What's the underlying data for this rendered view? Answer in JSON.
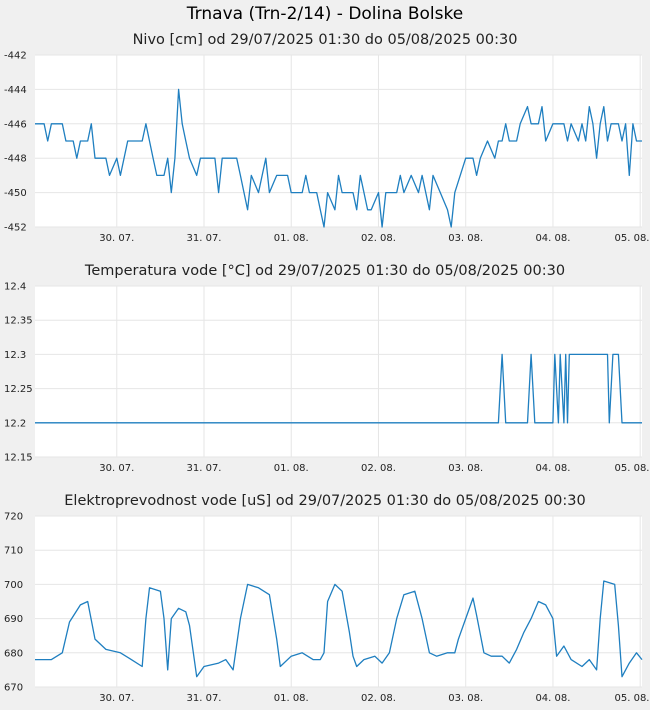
{
  "title": "Trnava (Trn-2/14) - Dolina Bolske",
  "series_color": "#1f7fc0",
  "chart_data": [
    {
      "type": "line",
      "title": "Nivo [cm] od 29/07/2025 01:30 do 05/08/2025 00:30",
      "ylim": [
        -452,
        -442
      ],
      "yticks": [
        "-442",
        "-444",
        "-446",
        "-448",
        "-450",
        "-452"
      ],
      "xticks": [
        "30. 07.",
        "31. 07.",
        "01. 08.",
        "02. 08.",
        "03. 08.",
        "04. 08.",
        "05. 08."
      ],
      "x_start": "2025-07-29 01:30",
      "x_end": "2025-08-05 00:30",
      "series": [
        {
          "points": [
            [
              "2025-07-29 01:30",
              -446
            ],
            [
              "2025-07-29 04:00",
              -446
            ],
            [
              "2025-07-29 05:00",
              -447
            ],
            [
              "2025-07-29 06:00",
              -446
            ],
            [
              "2025-07-29 09:00",
              -446
            ],
            [
              "2025-07-29 10:00",
              -447
            ],
            [
              "2025-07-29 12:00",
              -447
            ],
            [
              "2025-07-29 13:00",
              -448
            ],
            [
              "2025-07-29 14:00",
              -447
            ],
            [
              "2025-07-29 16:00",
              -447
            ],
            [
              "2025-07-29 17:00",
              -446
            ],
            [
              "2025-07-29 18:00",
              -448
            ],
            [
              "2025-07-29 21:00",
              -448
            ],
            [
              "2025-07-29 22:00",
              -449
            ],
            [
              "2025-07-30 00:00",
              -448
            ],
            [
              "2025-07-30 01:00",
              -449
            ],
            [
              "2025-07-30 03:00",
              -447
            ],
            [
              "2025-07-30 07:00",
              -447
            ],
            [
              "2025-07-30 08:00",
              -446
            ],
            [
              "2025-07-30 09:00",
              -447
            ],
            [
              "2025-07-30 10:00",
              -448
            ],
            [
              "2025-07-30 11:00",
              -449
            ],
            [
              "2025-07-30 13:00",
              -449
            ],
            [
              "2025-07-30 14:00",
              -448
            ],
            [
              "2025-07-30 15:00",
              -450
            ],
            [
              "2025-07-30 16:00",
              -448
            ],
            [
              "2025-07-30 17:00",
              -444
            ],
            [
              "2025-07-30 18:00",
              -446
            ],
            [
              "2025-07-30 19:00",
              -447
            ],
            [
              "2025-07-30 20:00",
              -448
            ],
            [
              "2025-07-30 22:00",
              -449
            ],
            [
              "2025-07-30 23:00",
              -448
            ],
            [
              "2025-07-31 03:00",
              -448
            ],
            [
              "2025-07-31 04:00",
              -450
            ],
            [
              "2025-07-31 05:00",
              -448
            ],
            [
              "2025-07-31 09:00",
              -448
            ],
            [
              "2025-07-31 10:00",
              -449
            ],
            [
              "2025-07-31 11:00",
              -450
            ],
            [
              "2025-07-31 12:00",
              -451
            ],
            [
              "2025-07-31 13:00",
              -449
            ],
            [
              "2025-07-31 15:00",
              -450
            ],
            [
              "2025-07-31 17:00",
              -448
            ],
            [
              "2025-07-31 18:00",
              -450
            ],
            [
              "2025-07-31 20:00",
              -449
            ],
            [
              "2025-07-31 23:00",
              -449
            ],
            [
              "2025-08-01 00:00",
              -450
            ],
            [
              "2025-08-01 03:00",
              -450
            ],
            [
              "2025-08-01 04:00",
              -449
            ],
            [
              "2025-08-01 05:00",
              -450
            ],
            [
              "2025-08-01 07:00",
              -450
            ],
            [
              "2025-08-01 08:00",
              -451
            ],
            [
              "2025-08-01 09:00",
              -452
            ],
            [
              "2025-08-01 10:00",
              -450
            ],
            [
              "2025-08-01 12:00",
              -451
            ],
            [
              "2025-08-01 13:00",
              -449
            ],
            [
              "2025-08-01 14:00",
              -450
            ],
            [
              "2025-08-01 17:00",
              -450
            ],
            [
              "2025-08-01 18:00",
              -451
            ],
            [
              "2025-08-01 19:00",
              -449
            ],
            [
              "2025-08-01 21:00",
              -451
            ],
            [
              "2025-08-01 22:00",
              -451
            ],
            [
              "2025-08-02 00:00",
              -450
            ],
            [
              "2025-08-02 01:00",
              -452
            ],
            [
              "2025-08-02 02:00",
              -450
            ],
            [
              "2025-08-02 05:00",
              -450
            ],
            [
              "2025-08-02 06:00",
              -449
            ],
            [
              "2025-08-02 07:00",
              -450
            ],
            [
              "2025-08-02 09:00",
              -449
            ],
            [
              "2025-08-02 11:00",
              -450
            ],
            [
              "2025-08-02 12:00",
              -449
            ],
            [
              "2025-08-02 14:00",
              -451
            ],
            [
              "2025-08-02 15:00",
              -449
            ],
            [
              "2025-08-02 17:00",
              -450
            ],
            [
              "2025-08-02 19:00",
              -451
            ],
            [
              "2025-08-02 20:00",
              -452
            ],
            [
              "2025-08-02 21:00",
              -450
            ],
            [
              "2025-08-03 00:00",
              -448
            ],
            [
              "2025-08-03 02:00",
              -448
            ],
            [
              "2025-08-03 03:00",
              -449
            ],
            [
              "2025-08-03 04:00",
              -448
            ],
            [
              "2025-08-03 06:00",
              -447
            ],
            [
              "2025-08-03 08:00",
              -448
            ],
            [
              "2025-08-03 09:00",
              -447
            ],
            [
              "2025-08-03 10:00",
              -447
            ],
            [
              "2025-08-03 11:00",
              -446
            ],
            [
              "2025-08-03 12:00",
              -447
            ],
            [
              "2025-08-03 14:00",
              -447
            ],
            [
              "2025-08-03 15:00",
              -446
            ],
            [
              "2025-08-03 17:00",
              -445
            ],
            [
              "2025-08-03 18:00",
              -446
            ],
            [
              "2025-08-03 20:00",
              -446
            ],
            [
              "2025-08-03 21:00",
              -445
            ],
            [
              "2025-08-03 22:00",
              -447
            ],
            [
              "2025-08-04 00:00",
              -446
            ],
            [
              "2025-08-04 03:00",
              -446
            ],
            [
              "2025-08-04 04:00",
              -447
            ],
            [
              "2025-08-04 05:00",
              -446
            ],
            [
              "2025-08-04 07:00",
              -447
            ],
            [
              "2025-08-04 08:00",
              -446
            ],
            [
              "2025-08-04 09:00",
              -447
            ],
            [
              "2025-08-04 10:00",
              -445
            ],
            [
              "2025-08-04 11:00",
              -446
            ],
            [
              "2025-08-04 12:00",
              -448
            ],
            [
              "2025-08-04 13:00",
              -446
            ],
            [
              "2025-08-04 14:00",
              -445
            ],
            [
              "2025-08-04 15:00",
              -447
            ],
            [
              "2025-08-04 16:00",
              -446
            ],
            [
              "2025-08-04 18:00",
              -446
            ],
            [
              "2025-08-04 19:00",
              -447
            ],
            [
              "2025-08-04 20:00",
              -446
            ],
            [
              "2025-08-04 21:00",
              -449
            ],
            [
              "2025-08-04 22:00",
              -446
            ],
            [
              "2025-08-04 23:00",
              -447
            ],
            [
              "2025-08-05 00:30",
              -447
            ]
          ]
        }
      ]
    },
    {
      "type": "line",
      "title": "Temperatura vode [°C] od 29/07/2025 01:30 do 05/08/2025 00:30",
      "ylim": [
        12.15,
        12.4
      ],
      "yticks": [
        "12.4",
        "12.35",
        "12.3",
        "12.25",
        "12.2",
        "12.15"
      ],
      "xticks": [
        "30. 07.",
        "31. 07.",
        "01. 08.",
        "02. 08.",
        "03. 08.",
        "04. 08.",
        "05. 08."
      ],
      "x_start": "2025-07-29 01:30",
      "x_end": "2025-08-05 00:30",
      "series": [
        {
          "points": [
            [
              "2025-07-29 01:30",
              12.2
            ],
            [
              "2025-08-03 09:00",
              12.2
            ],
            [
              "2025-08-03 10:00",
              12.3
            ],
            [
              "2025-08-03 11:00",
              12.2
            ],
            [
              "2025-08-03 17:00",
              12.2
            ],
            [
              "2025-08-03 18:00",
              12.3
            ],
            [
              "2025-08-03 19:00",
              12.2
            ],
            [
              "2025-08-04 00:00",
              12.2
            ],
            [
              "2025-08-04 00:30",
              12.3
            ],
            [
              "2025-08-04 01:30",
              12.2
            ],
            [
              "2025-08-04 02:00",
              12.3
            ],
            [
              "2025-08-04 03:00",
              12.2
            ],
            [
              "2025-08-04 03:30",
              12.3
            ],
            [
              "2025-08-04 04:00",
              12.2
            ],
            [
              "2025-08-04 04:30",
              12.3
            ],
            [
              "2025-08-04 15:00",
              12.3
            ],
            [
              "2025-08-04 15:30",
              12.2
            ],
            [
              "2025-08-04 16:30",
              12.3
            ],
            [
              "2025-08-04 18:00",
              12.3
            ],
            [
              "2025-08-04 19:00",
              12.2
            ],
            [
              "2025-08-05 00:30",
              12.2
            ]
          ]
        }
      ]
    },
    {
      "type": "line",
      "title": "Elektroprevodnost vode [uS] od 29/07/2025 01:30 do 05/08/2025 00:30",
      "ylim": [
        670,
        720
      ],
      "yticks": [
        "720",
        "710",
        "700",
        "690",
        "680",
        "670"
      ],
      "xticks": [
        "30. 07.",
        "31. 07.",
        "01. 08.",
        "02. 08.",
        "03. 08.",
        "04. 08.",
        "05. 08."
      ],
      "x_start": "2025-07-29 01:30",
      "x_end": "2025-08-05 00:30",
      "series": [
        {
          "points": [
            [
              "2025-07-29 01:30",
              678
            ],
            [
              "2025-07-29 06:00",
              678
            ],
            [
              "2025-07-29 09:00",
              680
            ],
            [
              "2025-07-29 11:00",
              689
            ],
            [
              "2025-07-29 14:00",
              694
            ],
            [
              "2025-07-29 16:00",
              695
            ],
            [
              "2025-07-29 18:00",
              684
            ],
            [
              "2025-07-29 21:00",
              681
            ],
            [
              "2025-07-30 01:00",
              680
            ],
            [
              "2025-07-30 04:00",
              678
            ],
            [
              "2025-07-30 07:00",
              676
            ],
            [
              "2025-07-30 08:00",
              690
            ],
            [
              "2025-07-30 09:00",
              699
            ],
            [
              "2025-07-30 12:00",
              698
            ],
            [
              "2025-07-30 13:00",
              690
            ],
            [
              "2025-07-30 14:00",
              675
            ],
            [
              "2025-07-30 15:00",
              690
            ],
            [
              "2025-07-30 17:00",
              693
            ],
            [
              "2025-07-30 19:00",
              692
            ],
            [
              "2025-07-30 20:00",
              688
            ],
            [
              "2025-07-30 22:00",
              673
            ],
            [
              "2025-07-31 00:00",
              676
            ],
            [
              "2025-07-31 04:00",
              677
            ],
            [
              "2025-07-31 06:00",
              678
            ],
            [
              "2025-07-31 08:00",
              675
            ],
            [
              "2025-07-31 10:00",
              690
            ],
            [
              "2025-07-31 12:00",
              700
            ],
            [
              "2025-07-31 15:00",
              699
            ],
            [
              "2025-07-31 18:00",
              697
            ],
            [
              "2025-07-31 20:00",
              684
            ],
            [
              "2025-07-31 21:00",
              676
            ],
            [
              "2025-08-01 00:00",
              679
            ],
            [
              "2025-08-01 03:00",
              680
            ],
            [
              "2025-08-01 06:00",
              678
            ],
            [
              "2025-08-01 08:00",
              678
            ],
            [
              "2025-08-01 09:00",
              680
            ],
            [
              "2025-08-01 10:00",
              695
            ],
            [
              "2025-08-01 12:00",
              700
            ],
            [
              "2025-08-01 14:00",
              698
            ],
            [
              "2025-08-01 16:00",
              686
            ],
            [
              "2025-08-01 17:00",
              679
            ],
            [
              "2025-08-01 18:00",
              676
            ],
            [
              "2025-08-01 20:00",
              678
            ],
            [
              "2025-08-01 23:00",
              679
            ],
            [
              "2025-08-02 01:00",
              677
            ],
            [
              "2025-08-02 03:00",
              680
            ],
            [
              "2025-08-02 05:00",
              690
            ],
            [
              "2025-08-02 07:00",
              697
            ],
            [
              "2025-08-02 10:00",
              698
            ],
            [
              "2025-08-02 12:00",
              690
            ],
            [
              "2025-08-02 14:00",
              680
            ],
            [
              "2025-08-02 16:00",
              679
            ],
            [
              "2025-08-02 19:00",
              680
            ],
            [
              "2025-08-02 21:00",
              680
            ],
            [
              "2025-08-02 22:00",
              684
            ],
            [
              "2025-08-03 00:00",
              690
            ],
            [
              "2025-08-03 02:00",
              696
            ],
            [
              "2025-08-03 03:00",
              691
            ],
            [
              "2025-08-03 05:00",
              680
            ],
            [
              "2025-08-03 07:00",
              679
            ],
            [
              "2025-08-03 10:00",
              679
            ],
            [
              "2025-08-03 12:00",
              677
            ],
            [
              "2025-08-03 14:00",
              681
            ],
            [
              "2025-08-03 16:00",
              686
            ],
            [
              "2025-08-03 18:00",
              690
            ],
            [
              "2025-08-03 20:00",
              695
            ],
            [
              "2025-08-03 22:00",
              694
            ],
            [
              "2025-08-04 00:00",
              690
            ],
            [
              "2025-08-04 01:00",
              679
            ],
            [
              "2025-08-04 03:00",
              682
            ],
            [
              "2025-08-04 05:00",
              678
            ],
            [
              "2025-08-04 08:00",
              676
            ],
            [
              "2025-08-04 10:00",
              678
            ],
            [
              "2025-08-04 12:00",
              675
            ],
            [
              "2025-08-04 13:00",
              690
            ],
            [
              "2025-08-04 14:00",
              701
            ],
            [
              "2025-08-04 17:00",
              700
            ],
            [
              "2025-08-04 18:00",
              688
            ],
            [
              "2025-08-04 19:00",
              673
            ],
            [
              "2025-08-04 21:00",
              677
            ],
            [
              "2025-08-04 23:00",
              680
            ],
            [
              "2025-08-05 00:30",
              678
            ]
          ]
        }
      ]
    }
  ]
}
